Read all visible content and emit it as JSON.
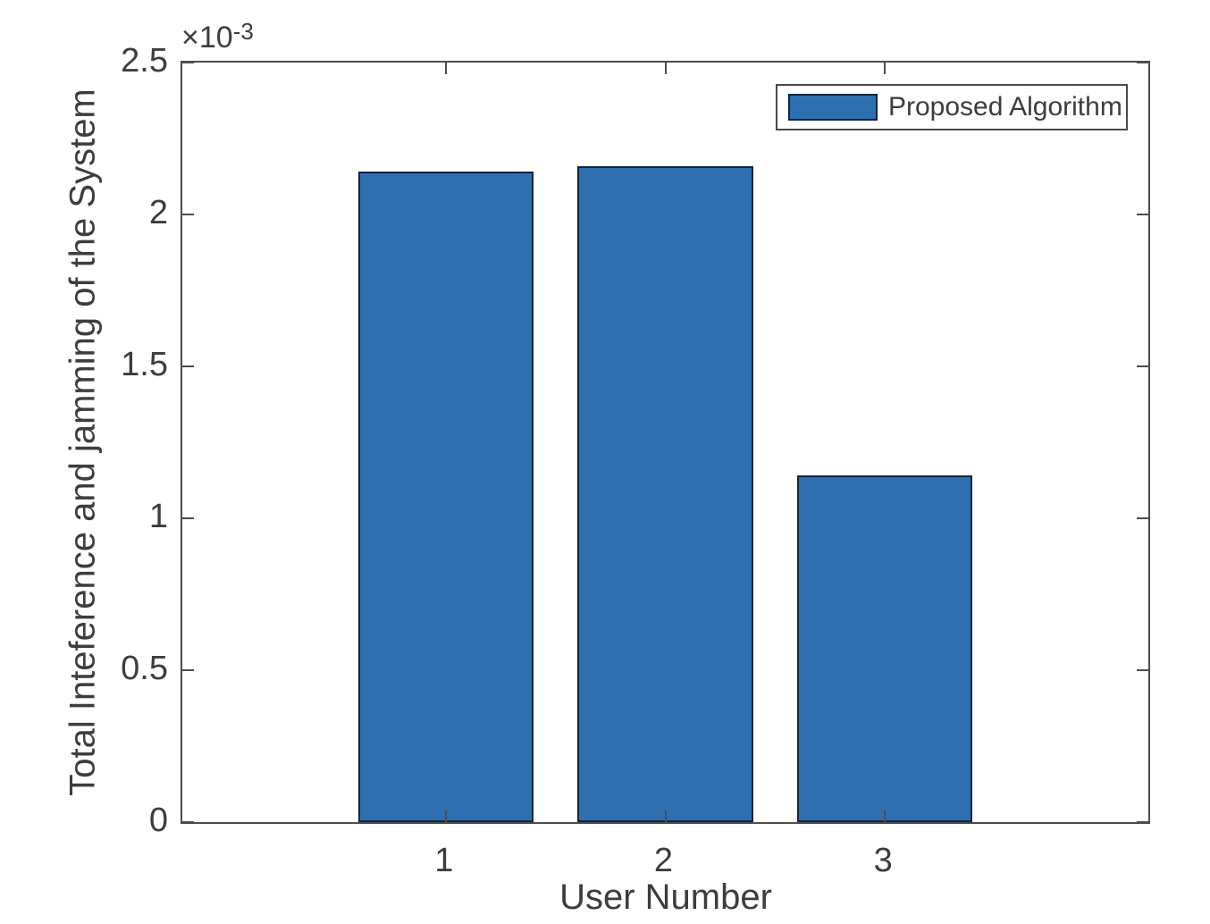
{
  "figure": {
    "background": "#ffffff",
    "axis_color": "#4d4d4d",
    "text_color": "#3d3d3d"
  },
  "chart_data": {
    "type": "bar",
    "title": "",
    "xlabel": "User Number",
    "ylabel": "Total Inteference and jamming of the System",
    "series": [
      {
        "name": "Proposed Algorithm",
        "values": [
          0.00214,
          0.00216,
          0.00114
        ]
      }
    ],
    "categories": [
      "1",
      "2",
      "3"
    ],
    "x_positions": [
      1,
      2,
      3
    ],
    "bar_width_data_units": 0.8,
    "bar_color": "#2E6FB0",
    "bar_edge_color": "#102540",
    "xlim": [
      -0.2,
      4.2
    ],
    "ylim": [
      0,
      0.0025
    ],
    "y_ticks": [
      0,
      0.0005,
      0.001,
      0.0015,
      0.002,
      0.0025
    ],
    "y_tick_labels": [
      "0",
      "0.5",
      "1",
      "1.5",
      "2",
      "2.5"
    ],
    "y_scale_prefix": "×10",
    "y_scale_exponent": "-3",
    "grid": false,
    "legend": {
      "position": "top-right",
      "entries": [
        "Proposed Algorithm"
      ]
    }
  }
}
